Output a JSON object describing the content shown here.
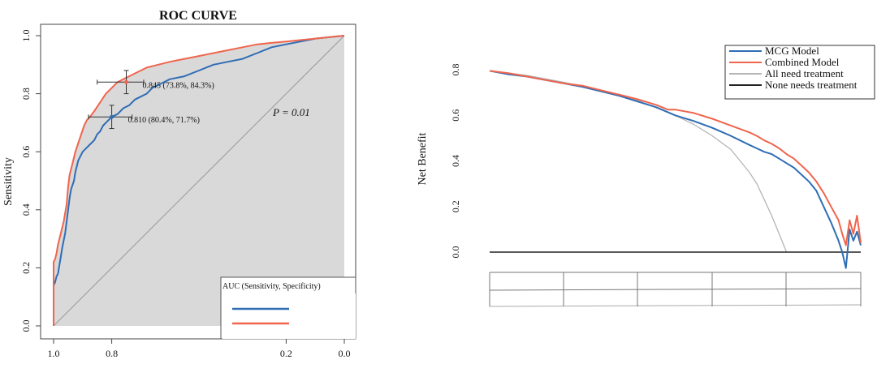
{
  "chart_data": [
    {
      "type": "line",
      "title": "ROC CURVE",
      "xlabel": "",
      "ylabel": "Sensitivity",
      "xlim": [
        1.0,
        0.0
      ],
      "ylim": [
        0.0,
        1.0
      ],
      "x_ticks": [
        "1.0",
        "0.8",
        "0.2",
        "0.0"
      ],
      "x_tick_values": [
        1.0,
        0.8,
        0.2,
        0.0
      ],
      "y_ticks": [
        "0.0",
        "0.2",
        "0.4",
        "0.6",
        "0.8",
        "1.0"
      ],
      "y_tick_values": [
        0.0,
        0.2,
        0.4,
        0.6,
        0.8,
        1.0
      ],
      "annotation_p": "P  =  0.01",
      "legend_title": "AUC (Sensitivity, Specificity)",
      "colors": {
        "blue": "#2f6db5",
        "red": "#f0654d",
        "gray_fill": "#d9d9d9",
        "frame": "#444444"
      },
      "series": [
        {
          "name": "blue",
          "x": [
            1.0,
            1.0,
            0.995,
            0.99,
            0.985,
            0.98,
            0.975,
            0.97,
            0.96,
            0.955,
            0.95,
            0.945,
            0.94,
            0.93,
            0.925,
            0.92,
            0.915,
            0.905,
            0.9,
            0.89,
            0.88,
            0.87,
            0.86,
            0.85,
            0.84,
            0.83,
            0.82,
            0.8,
            0.78,
            0.76,
            0.74,
            0.72,
            0.7,
            0.68,
            0.66,
            0.64,
            0.6,
            0.55,
            0.5,
            0.45,
            0.4,
            0.35,
            0.3,
            0.25,
            0.2,
            0.15,
            0.1,
            0.05,
            0.0
          ],
          "y": [
            0.0,
            0.14,
            0.15,
            0.17,
            0.18,
            0.21,
            0.24,
            0.27,
            0.32,
            0.36,
            0.4,
            0.44,
            0.47,
            0.5,
            0.53,
            0.55,
            0.57,
            0.59,
            0.6,
            0.61,
            0.62,
            0.63,
            0.64,
            0.66,
            0.67,
            0.69,
            0.7,
            0.72,
            0.73,
            0.75,
            0.76,
            0.78,
            0.79,
            0.8,
            0.82,
            0.83,
            0.85,
            0.86,
            0.88,
            0.9,
            0.91,
            0.92,
            0.94,
            0.96,
            0.97,
            0.98,
            0.99,
            0.995,
            1.0
          ]
        },
        {
          "name": "red",
          "x": [
            1.0,
            1.0,
            0.995,
            0.99,
            0.985,
            0.975,
            0.965,
            0.955,
            0.95,
            0.945,
            0.935,
            0.925,
            0.915,
            0.905,
            0.895,
            0.885,
            0.875,
            0.86,
            0.84,
            0.82,
            0.8,
            0.78,
            0.76,
            0.74,
            0.72,
            0.7,
            0.68,
            0.64,
            0.6,
            0.55,
            0.5,
            0.45,
            0.4,
            0.35,
            0.3,
            0.25,
            0.2,
            0.15,
            0.1,
            0.05,
            0.0
          ],
          "y": [
            0.0,
            0.22,
            0.23,
            0.25,
            0.28,
            0.32,
            0.36,
            0.42,
            0.48,
            0.52,
            0.56,
            0.6,
            0.63,
            0.66,
            0.69,
            0.71,
            0.72,
            0.74,
            0.77,
            0.8,
            0.82,
            0.84,
            0.85,
            0.86,
            0.87,
            0.88,
            0.89,
            0.9,
            0.91,
            0.92,
            0.93,
            0.94,
            0.95,
            0.96,
            0.97,
            0.975,
            0.98,
            0.985,
            0.99,
            0.995,
            1.0
          ]
        }
      ],
      "points": [
        {
          "label": "0.845 (73.8%, 84.3%)",
          "x": 0.75,
          "y": 0.84,
          "x_err": [
            0.85,
            0.69
          ],
          "y_err": [
            0.8,
            0.88
          ],
          "color": "red"
        },
        {
          "label": "0.810 (80.4%, 71.7%)",
          "x": 0.8,
          "y": 0.72,
          "x_err": [
            0.88,
            0.73
          ],
          "y_err": [
            0.68,
            0.76
          ],
          "color": "blue"
        }
      ]
    },
    {
      "type": "line",
      "title": "",
      "xlabel": "",
      "ylabel": "Net Benefit",
      "xlim": [
        0.0,
        1.0
      ],
      "ylim": [
        -0.08,
        0.8
      ],
      "y_ticks": [
        "0.0",
        "0.2",
        "0.4",
        "0.6",
        "0.8"
      ],
      "y_tick_values": [
        0.0,
        0.2,
        0.4,
        0.6,
        0.8
      ],
      "legend": [
        "MCG Model",
        "Combined Model",
        "All need treatment",
        "None needs treatment"
      ],
      "colors": {
        "MCG Model": "#2f6db5",
        "Combined Model": "#f0654d",
        "All need treatment": "#b5b5b5",
        "None needs treatment": "#222222"
      },
      "series": [
        {
          "name": "MCG Model",
          "x": [
            0.0,
            0.05,
            0.1,
            0.15,
            0.2,
            0.25,
            0.3,
            0.35,
            0.4,
            0.45,
            0.5,
            0.55,
            0.6,
            0.65,
            0.7,
            0.72,
            0.74,
            0.76,
            0.78,
            0.8,
            0.82,
            0.84,
            0.86,
            0.88,
            0.9,
            0.92,
            0.94,
            0.95,
            0.96,
            0.97,
            0.98,
            0.99,
            1.0
          ],
          "y": [
            0.795,
            0.78,
            0.77,
            0.755,
            0.74,
            0.725,
            0.705,
            0.685,
            0.66,
            0.635,
            0.6,
            0.575,
            0.545,
            0.51,
            0.47,
            0.455,
            0.44,
            0.43,
            0.41,
            0.39,
            0.37,
            0.34,
            0.31,
            0.27,
            0.2,
            0.13,
            0.05,
            0.0,
            -0.07,
            0.1,
            0.05,
            0.09,
            0.03
          ]
        },
        {
          "name": "Combined Model",
          "x": [
            0.0,
            0.05,
            0.1,
            0.15,
            0.2,
            0.25,
            0.3,
            0.35,
            0.4,
            0.45,
            0.48,
            0.5,
            0.55,
            0.6,
            0.65,
            0.7,
            0.72,
            0.74,
            0.76,
            0.78,
            0.8,
            0.82,
            0.84,
            0.86,
            0.88,
            0.9,
            0.92,
            0.94,
            0.95,
            0.96,
            0.97,
            0.98,
            0.99,
            1.0
          ],
          "y": [
            0.795,
            0.785,
            0.77,
            0.755,
            0.74,
            0.73,
            0.71,
            0.69,
            0.67,
            0.645,
            0.625,
            0.625,
            0.61,
            0.585,
            0.555,
            0.525,
            0.51,
            0.49,
            0.475,
            0.455,
            0.43,
            0.41,
            0.38,
            0.35,
            0.31,
            0.26,
            0.2,
            0.14,
            0.08,
            0.03,
            0.14,
            0.08,
            0.16,
            0.04
          ]
        },
        {
          "name": "All need treatment",
          "x": [
            0.0,
            0.1,
            0.2,
            0.3,
            0.4,
            0.5,
            0.55,
            0.6,
            0.65,
            0.7,
            0.72,
            0.74,
            0.76,
            0.78,
            0.8
          ],
          "y": [
            0.795,
            0.775,
            0.745,
            0.71,
            0.665,
            0.6,
            0.56,
            0.51,
            0.45,
            0.35,
            0.3,
            0.23,
            0.16,
            0.08,
            0.0
          ]
        },
        {
          "name": "None needs treatment",
          "x": [
            0.0,
            1.0
          ],
          "y": [
            0.0,
            0.0
          ]
        }
      ]
    }
  ]
}
